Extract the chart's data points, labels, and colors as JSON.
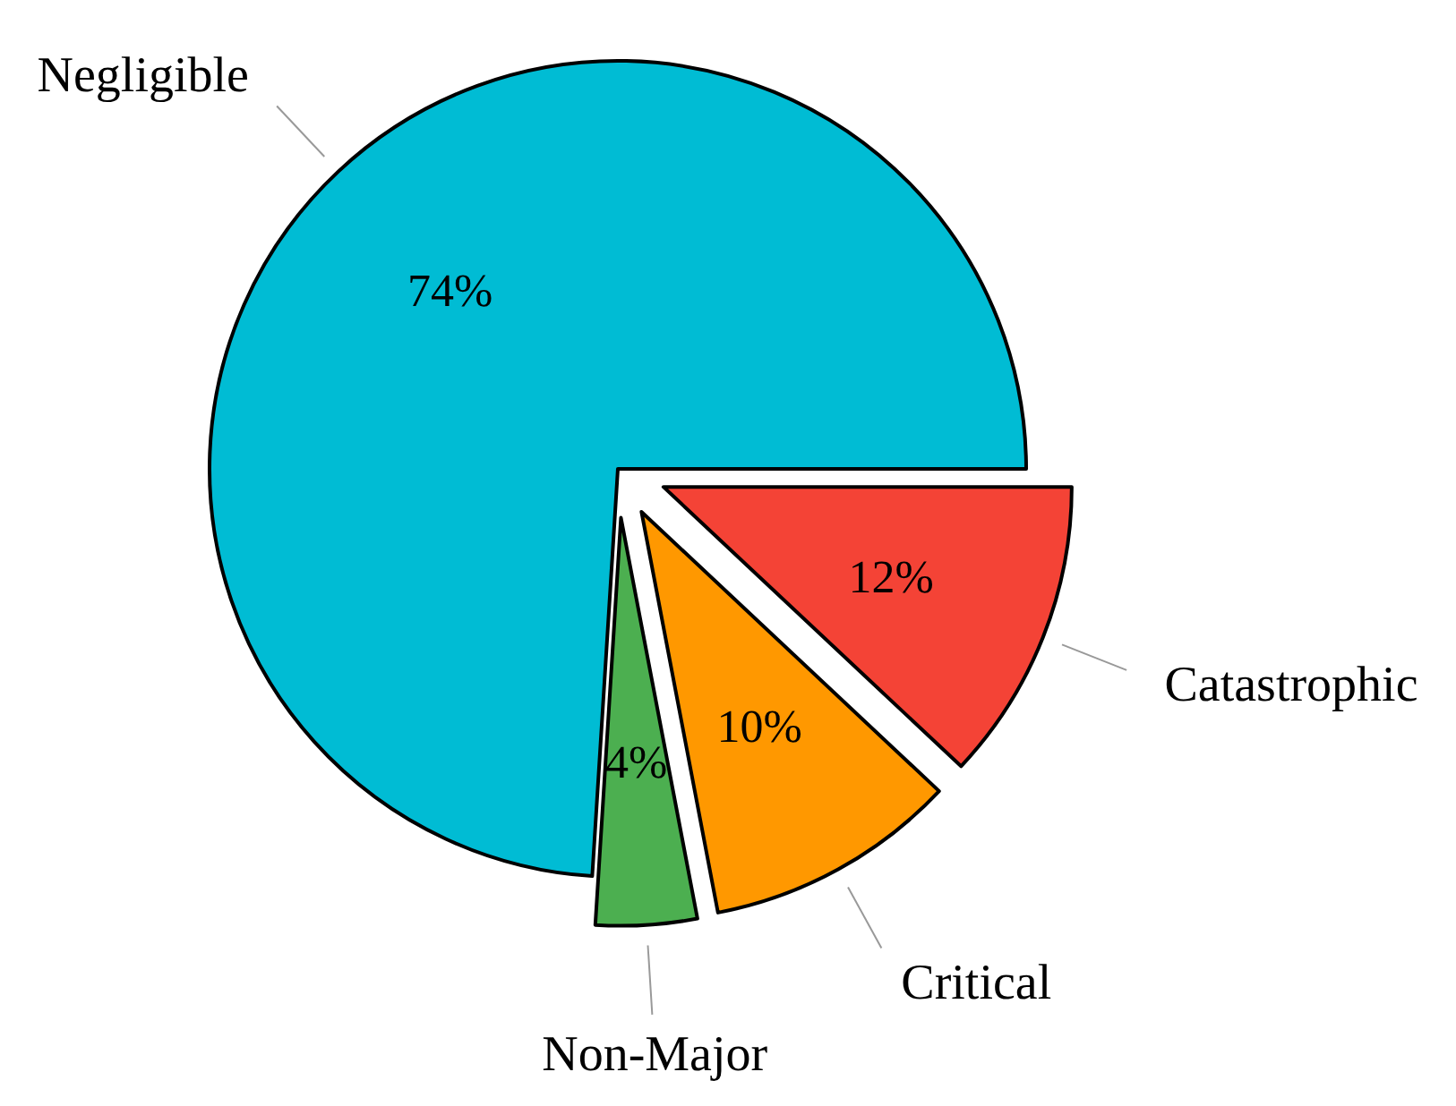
{
  "chart_data": {
    "type": "pie",
    "categories": [
      "Catastrophic",
      "Critical",
      "Non-Major",
      "Negligible"
    ],
    "values": [
      12,
      10,
      4,
      74
    ],
    "colors": [
      "#f44336",
      "#ff9800",
      "#4caf50",
      "#00bcd4"
    ],
    "value_labels": [
      "12%",
      "10%",
      "4%",
      "74%"
    ]
  }
}
